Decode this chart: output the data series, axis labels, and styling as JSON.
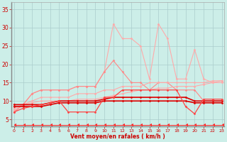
{
  "background_color": "#cceee8",
  "grid_color": "#aacccc",
  "x_label": "Vent moyen/en rafales ( km/h )",
  "x_ticks": [
    0,
    1,
    2,
    3,
    4,
    5,
    6,
    7,
    8,
    9,
    10,
    11,
    12,
    13,
    14,
    15,
    16,
    17,
    18,
    19,
    20,
    21,
    22,
    23
  ],
  "y_ticks": [
    5,
    10,
    15,
    20,
    25,
    30,
    35
  ],
  "ylim": [
    3,
    37
  ],
  "xlim": [
    -0.3,
    23.3
  ],
  "series": [
    {
      "color": "#ffaaaa",
      "linewidth": 0.8,
      "marker": "D",
      "markersize": 1.5,
      "data": [
        [
          0,
          7
        ],
        [
          1,
          9
        ],
        [
          2,
          12
        ],
        [
          3,
          13
        ],
        [
          4,
          13
        ],
        [
          5,
          13
        ],
        [
          6,
          13
        ],
        [
          7,
          14
        ],
        [
          8,
          14
        ],
        [
          9,
          14
        ],
        [
          10,
          18
        ],
        [
          11,
          31
        ],
        [
          12,
          27
        ],
        [
          13,
          27
        ],
        [
          14,
          25
        ],
        [
          15,
          16
        ],
        [
          16,
          31
        ],
        [
          17,
          27
        ],
        [
          18,
          16
        ],
        [
          19,
          16
        ],
        [
          20,
          24
        ],
        [
          21,
          16
        ],
        [
          22,
          15
        ],
        [
          23,
          15
        ]
      ]
    },
    {
      "color": "#ff8888",
      "linewidth": 0.8,
      "marker": "D",
      "markersize": 1.5,
      "data": [
        [
          0,
          7
        ],
        [
          1,
          9
        ],
        [
          2,
          12
        ],
        [
          3,
          13
        ],
        [
          4,
          13
        ],
        [
          5,
          13
        ],
        [
          6,
          13
        ],
        [
          7,
          14
        ],
        [
          8,
          14
        ],
        [
          9,
          14
        ],
        [
          10,
          18
        ],
        [
          11,
          21
        ],
        [
          12,
          18
        ],
        [
          13,
          15
        ],
        [
          14,
          15
        ],
        [
          15,
          13
        ],
        [
          16,
          15
        ],
        [
          17,
          15
        ],
        [
          18,
          13
        ],
        [
          19,
          13
        ],
        [
          20,
          13
        ],
        [
          21,
          10
        ],
        [
          22,
          10
        ],
        [
          23,
          10
        ]
      ]
    },
    {
      "color": "#ffaaaa",
      "linewidth": 0.8,
      "marker": "D",
      "markersize": 1.5,
      "data": [
        [
          0,
          7.5
        ],
        [
          1,
          9
        ],
        [
          2,
          10
        ],
        [
          3,
          11
        ],
        [
          4,
          11
        ],
        [
          5,
          11
        ],
        [
          6,
          11
        ],
        [
          7,
          12
        ],
        [
          8,
          12
        ],
        [
          9,
          12
        ],
        [
          10,
          13
        ],
        [
          11,
          13
        ],
        [
          12,
          14
        ],
        [
          13,
          14
        ],
        [
          14,
          14
        ],
        [
          15,
          15
        ],
        [
          16,
          15
        ],
        [
          17,
          15
        ],
        [
          18,
          15
        ],
        [
          19,
          15
        ],
        [
          20,
          15
        ],
        [
          21,
          15
        ],
        [
          22,
          15.5
        ],
        [
          23,
          15.5
        ]
      ]
    },
    {
      "color": "#ffaaaa",
      "linewidth": 0.8,
      "marker": "D",
      "markersize": 1.5,
      "data": [
        [
          0,
          8
        ],
        [
          1,
          9
        ],
        [
          2,
          9.5
        ],
        [
          3,
          10
        ],
        [
          4,
          10
        ],
        [
          5,
          10
        ],
        [
          6,
          10
        ],
        [
          7,
          10.5
        ],
        [
          8,
          10.5
        ],
        [
          9,
          10.5
        ],
        [
          10,
          11
        ],
        [
          11,
          11.5
        ],
        [
          12,
          12
        ],
        [
          13,
          12.5
        ],
        [
          14,
          13
        ],
        [
          15,
          13
        ],
        [
          16,
          13.5
        ],
        [
          17,
          13.5
        ],
        [
          18,
          14
        ],
        [
          19,
          14
        ],
        [
          20,
          14
        ],
        [
          21,
          14.5
        ],
        [
          22,
          15
        ],
        [
          23,
          15.5
        ]
      ]
    },
    {
      "color": "#dd0000",
      "linewidth": 1.2,
      "marker": "D",
      "markersize": 1.5,
      "data": [
        [
          0,
          9
        ],
        [
          1,
          9
        ],
        [
          2,
          9
        ],
        [
          3,
          9
        ],
        [
          4,
          9.5
        ],
        [
          5,
          10
        ],
        [
          6,
          10
        ],
        [
          7,
          10
        ],
        [
          8,
          10
        ],
        [
          9,
          10
        ],
        [
          10,
          10.5
        ],
        [
          11,
          11
        ],
        [
          12,
          11
        ],
        [
          13,
          11
        ],
        [
          14,
          11
        ],
        [
          15,
          11
        ],
        [
          16,
          11
        ],
        [
          17,
          11
        ],
        [
          18,
          11
        ],
        [
          19,
          11
        ],
        [
          20,
          10
        ],
        [
          21,
          10
        ],
        [
          22,
          10
        ],
        [
          23,
          10
        ]
      ]
    },
    {
      "color": "#dd0000",
      "linewidth": 1.2,
      "marker": "D",
      "markersize": 1.5,
      "data": [
        [
          0,
          8.5
        ],
        [
          1,
          8.5
        ],
        [
          2,
          8.5
        ],
        [
          3,
          8.5
        ],
        [
          4,
          9
        ],
        [
          5,
          9.5
        ],
        [
          6,
          9.5
        ],
        [
          7,
          9.5
        ],
        [
          8,
          9.5
        ],
        [
          9,
          9.5
        ],
        [
          10,
          10
        ],
        [
          11,
          10
        ],
        [
          12,
          10
        ],
        [
          13,
          10
        ],
        [
          14,
          10
        ],
        [
          15,
          10
        ],
        [
          16,
          10
        ],
        [
          17,
          10
        ],
        [
          18,
          10
        ],
        [
          19,
          10
        ],
        [
          20,
          9.5
        ],
        [
          21,
          9.5
        ],
        [
          22,
          9.5
        ],
        [
          23,
          9.5
        ]
      ]
    },
    {
      "color": "#ff4444",
      "linewidth": 0.9,
      "marker": "D",
      "markersize": 1.5,
      "data": [
        [
          0,
          7
        ],
        [
          1,
          8
        ],
        [
          2,
          8.5
        ],
        [
          3,
          9
        ],
        [
          4,
          9.5
        ],
        [
          5,
          10
        ],
        [
          6,
          7
        ],
        [
          7,
          7
        ],
        [
          8,
          7
        ],
        [
          9,
          7
        ],
        [
          10,
          11
        ],
        [
          11,
          11
        ],
        [
          12,
          13
        ],
        [
          13,
          13
        ],
        [
          14,
          13
        ],
        [
          15,
          13
        ],
        [
          16,
          13
        ],
        [
          17,
          13
        ],
        [
          18,
          13
        ],
        [
          19,
          8.5
        ],
        [
          20,
          6.5
        ],
        [
          21,
          10.5
        ],
        [
          22,
          10.5
        ],
        [
          23,
          10.5
        ]
      ]
    },
    {
      "color": "#ff2222",
      "linewidth": 0.7,
      "marker": 4,
      "markersize": 2.5,
      "data": [
        [
          0,
          3.5
        ],
        [
          1,
          3.5
        ],
        [
          2,
          3.5
        ],
        [
          3,
          3.5
        ],
        [
          4,
          3.5
        ],
        [
          5,
          3.5
        ],
        [
          6,
          3.5
        ],
        [
          7,
          3.5
        ],
        [
          8,
          3.5
        ],
        [
          9,
          3.5
        ],
        [
          10,
          3.5
        ],
        [
          11,
          3.5
        ],
        [
          12,
          3.5
        ],
        [
          13,
          3.5
        ],
        [
          14,
          3.5
        ],
        [
          15,
          3.5
        ],
        [
          16,
          3.5
        ],
        [
          17,
          3.5
        ],
        [
          18,
          3.5
        ],
        [
          19,
          3.5
        ],
        [
          20,
          3.5
        ],
        [
          21,
          3.5
        ],
        [
          22,
          3.5
        ],
        [
          23,
          3.5
        ]
      ]
    }
  ]
}
